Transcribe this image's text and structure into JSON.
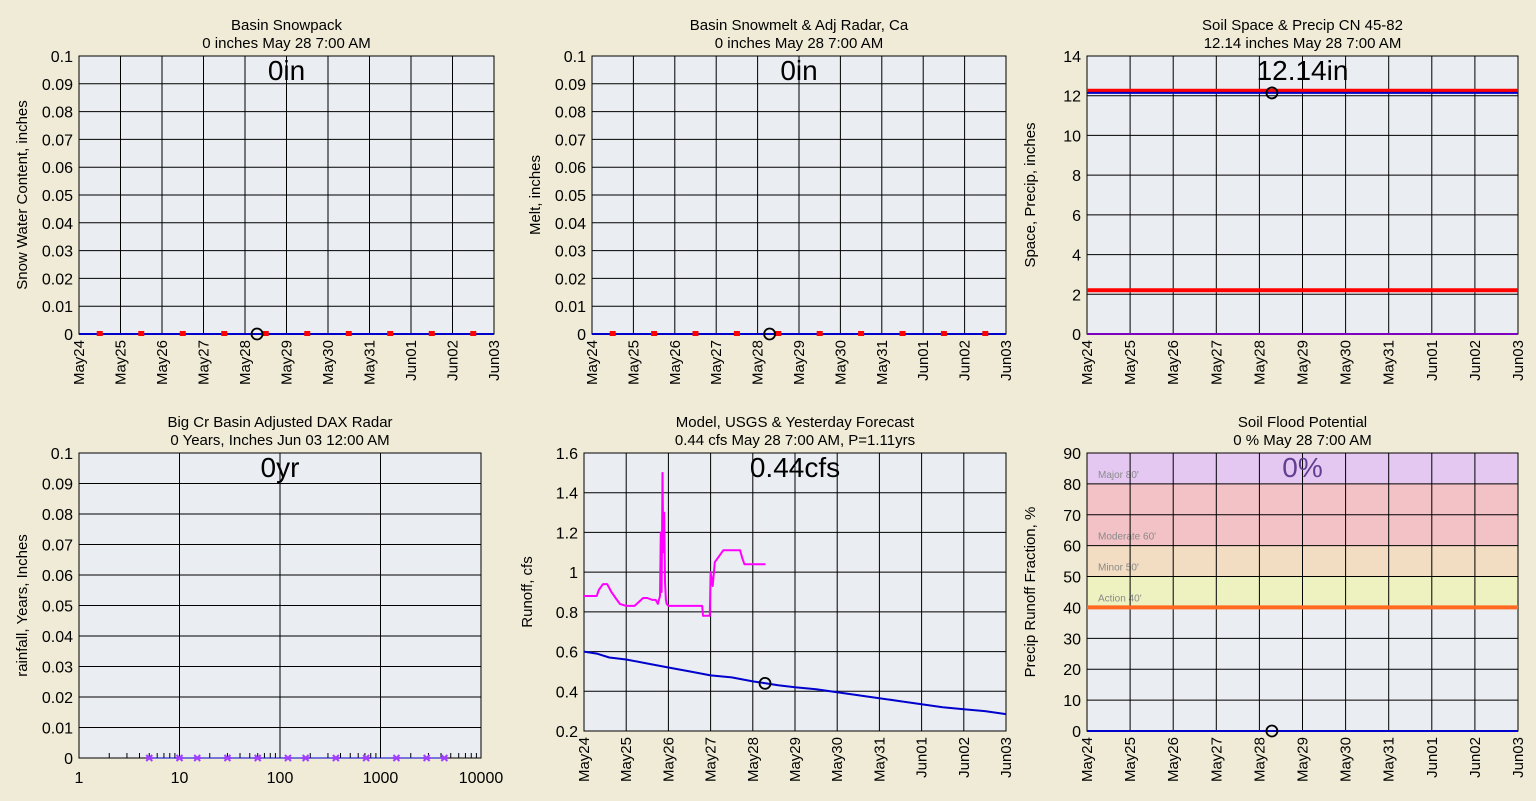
{
  "colors": {
    "background": "#efebd6",
    "plot_bg": "#eaedf2",
    "grid": "#000000",
    "series_blue": "#0000cc",
    "series_red": "#ff0000",
    "series_magenta": "#ff00ff",
    "series_purple": "#a040ff",
    "marker": "#000000"
  },
  "chart_data": [
    {
      "id": "snowpack",
      "type": "line",
      "title": "Basin Snowpack",
      "subtitle": "0 inches May 28 7:00 AM",
      "big_value": "0in",
      "ylabel": "Snow Water Content, inches",
      "ylim": [
        0,
        0.1
      ],
      "yticks": [
        0,
        0.01,
        0.02,
        0.03,
        0.04,
        0.05,
        0.06,
        0.07,
        0.08,
        0.09,
        0.1
      ],
      "ytick_labels": [
        "0",
        "0.01",
        "0.02",
        "0.03",
        "0.04",
        "0.05",
        "0.06",
        "0.07",
        "0.08",
        "0.09",
        "0.1"
      ],
      "xaxis": "date",
      "xlim": [
        0,
        10
      ],
      "xtick_labels": [
        "May24",
        "May25",
        "May26",
        "May27",
        "May28",
        "May29",
        "May30",
        "May31",
        "Jun01",
        "Jun02",
        "Jun03"
      ],
      "series": [
        {
          "kind": "line",
          "color": "#0000cc",
          "width": 2,
          "x": [
            0,
            10
          ],
          "y": [
            0,
            0
          ]
        },
        {
          "kind": "squares",
          "color": "#ff0000",
          "x": [
            0.5,
            1.5,
            2.5,
            3.5,
            4.5,
            5.5,
            6.5,
            7.5,
            8.5,
            9.5
          ],
          "y": [
            0,
            0,
            0,
            0,
            0,
            0,
            0,
            0,
            0,
            0
          ]
        }
      ],
      "marker": {
        "x": 4.29,
        "y": 0
      }
    },
    {
      "id": "snowmelt",
      "type": "line",
      "title": "Basin Snowmelt & Adj Radar, Ca",
      "subtitle": "0 inches May 28 7:00 AM",
      "big_value": "0in",
      "ylabel": "Melt, inches",
      "ylim": [
        0,
        0.1
      ],
      "yticks": [
        0,
        0.01,
        0.02,
        0.03,
        0.04,
        0.05,
        0.06,
        0.07,
        0.08,
        0.09,
        0.1
      ],
      "ytick_labels": [
        "0",
        "0.01",
        "0.02",
        "0.03",
        "0.04",
        "0.05",
        "0.06",
        "0.07",
        "0.08",
        "0.09",
        "0.1"
      ],
      "xaxis": "date",
      "xlim": [
        0,
        10
      ],
      "xtick_labels": [
        "May24",
        "May25",
        "May26",
        "May27",
        "May28",
        "May29",
        "May30",
        "May31",
        "Jun01",
        "Jun02",
        "Jun03"
      ],
      "series": [
        {
          "kind": "line",
          "color": "#0000cc",
          "width": 2,
          "x": [
            0,
            10
          ],
          "y": [
            0,
            0
          ]
        },
        {
          "kind": "squares",
          "color": "#ff0000",
          "x": [
            0.5,
            1.5,
            2.5,
            3.5,
            4.5,
            5.5,
            6.5,
            7.5,
            8.5,
            9.5
          ],
          "y": [
            0,
            0,
            0,
            0,
            0,
            0,
            0,
            0,
            0,
            0
          ]
        }
      ],
      "marker": {
        "x": 4.29,
        "y": 0
      }
    },
    {
      "id": "soilspace",
      "type": "line",
      "title": "Soil Space & Precip CN 45-82",
      "subtitle": "12.14 inches May 28 7:00 AM",
      "big_value": "12.14in",
      "ylabel": "Space, Precip, inches",
      "ylim": [
        0,
        14
      ],
      "yticks": [
        0,
        2,
        4,
        6,
        8,
        10,
        12,
        14
      ],
      "ytick_labels": [
        "0",
        "2",
        "4",
        "6",
        "8",
        "10",
        "12",
        "14"
      ],
      "xaxis": "date",
      "xlim": [
        0,
        10
      ],
      "xtick_labels": [
        "May24",
        "May25",
        "May26",
        "May27",
        "May28",
        "May29",
        "May30",
        "May31",
        "Jun01",
        "Jun02",
        "Jun03"
      ],
      "series": [
        {
          "kind": "line",
          "color": "#ff0000",
          "width": 4,
          "x": [
            0,
            10
          ],
          "y": [
            12.25,
            12.25
          ]
        },
        {
          "kind": "line",
          "color": "#0000cc",
          "width": 2,
          "x": [
            0,
            10
          ],
          "y": [
            12.14,
            12.14
          ]
        },
        {
          "kind": "line",
          "color": "#ff0000",
          "width": 4,
          "x": [
            0,
            10
          ],
          "y": [
            2.2,
            2.2
          ]
        },
        {
          "kind": "line",
          "color": "#8000c0",
          "width": 2,
          "x": [
            0,
            10
          ],
          "y": [
            0,
            0
          ]
        }
      ],
      "marker": {
        "x": 4.29,
        "y": 12.14
      }
    },
    {
      "id": "radar",
      "type": "line",
      "title": "Big Cr Basin Adjusted DAX Radar",
      "subtitle": "0 Years, Inches Jun 03 12:00 AM",
      "big_value": "0yr",
      "ylabel": "rainfall, Years, Inches",
      "ylim": [
        0,
        0.1
      ],
      "yticks": [
        0,
        0.01,
        0.02,
        0.03,
        0.04,
        0.05,
        0.06,
        0.07,
        0.08,
        0.09,
        0.1
      ],
      "ytick_labels": [
        "0",
        "0.01",
        "0.02",
        "0.03",
        "0.04",
        "0.05",
        "0.06",
        "0.07",
        "0.08",
        "0.09",
        "0.1"
      ],
      "xaxis": "log",
      "xlim": [
        1,
        10000
      ],
      "xtick_values": [
        1,
        10,
        100,
        1000,
        10000
      ],
      "xtick_labels": [
        "1",
        "10",
        "100",
        "1000",
        "10000"
      ],
      "series": [
        {
          "kind": "line",
          "color": "#0000cc",
          "width": 1,
          "x": [
            5,
            4320
          ],
          "y": [
            0,
            0
          ]
        },
        {
          "kind": "stars",
          "color": "#a040ff",
          "x": [
            5,
            10,
            15,
            30,
            60,
            120,
            180,
            360,
            720,
            1440,
            2880,
            4320
          ],
          "y": [
            0,
            0,
            0,
            0,
            0,
            0,
            0,
            0,
            0,
            0,
            0,
            0
          ]
        }
      ]
    },
    {
      "id": "runoff",
      "type": "line",
      "title": "Model, USGS & Yesterday Forecast",
      "subtitle": "0.44 cfs May 28 7:00 AM, P=1.11yrs",
      "big_value": "0.44cfs",
      "ylabel": "Runoff, cfs",
      "ylim": [
        0.2,
        1.6
      ],
      "yticks": [
        0.2,
        0.4,
        0.6,
        0.8,
        1,
        1.2,
        1.4,
        1.6
      ],
      "ytick_labels": [
        "0.2",
        "0.4",
        "0.6",
        "0.8",
        "1",
        "1.2",
        "1.4",
        "1.6"
      ],
      "xaxis": "date",
      "xlim": [
        0,
        10
      ],
      "xtick_labels": [
        "May24",
        "May25",
        "May26",
        "May27",
        "May28",
        "May29",
        "May30",
        "May31",
        "Jun01",
        "Jun02",
        "Jun03"
      ],
      "series": [
        {
          "kind": "line",
          "color": "#0000cc",
          "width": 2,
          "x": [
            0,
            0.3,
            0.6,
            1,
            1.5,
            2,
            2.5,
            3,
            3.5,
            4,
            4.3,
            4.6,
            5,
            5.5,
            6,
            6.5,
            7,
            7.5,
            8,
            8.5,
            9,
            9.5,
            10
          ],
          "y": [
            0.6,
            0.59,
            0.57,
            0.56,
            0.54,
            0.52,
            0.5,
            0.48,
            0.47,
            0.45,
            0.44,
            0.43,
            0.42,
            0.41,
            0.395,
            0.38,
            0.365,
            0.35,
            0.335,
            0.32,
            0.31,
            0.3,
            0.285
          ]
        },
        {
          "kind": "line",
          "color": "#ff00ff",
          "width": 2,
          "x": [
            0,
            0.3,
            0.35,
            0.45,
            0.55,
            0.65,
            0.75,
            0.85,
            1.0,
            1.2,
            1.4,
            1.5,
            1.62,
            1.7,
            1.75,
            1.8,
            1.82,
            1.84,
            1.86,
            1.88,
            1.9,
            1.92,
            1.94,
            1.96,
            2.0,
            2.1,
            2.3,
            2.5,
            2.6,
            2.8,
            2.82,
            2.9,
            2.95,
            2.98,
            3.0,
            3.05,
            3.1,
            3.2,
            3.3,
            3.5,
            3.6,
            3.7,
            3.75,
            3.8,
            3.9,
            4.0,
            4.2,
            4.3
          ],
          "y": [
            0.88,
            0.88,
            0.91,
            0.94,
            0.94,
            0.9,
            0.87,
            0.84,
            0.83,
            0.83,
            0.87,
            0.87,
            0.86,
            0.86,
            0.84,
            0.88,
            1.2,
            0.9,
            1.5,
            1.1,
            1.3,
            0.95,
            0.86,
            0.84,
            0.83,
            0.83,
            0.83,
            0.83,
            0.83,
            0.83,
            0.78,
            0.78,
            0.78,
            0.78,
            1.0,
            0.93,
            1.05,
            1.08,
            1.11,
            1.11,
            1.11,
            1.11,
            1.07,
            1.04,
            1.04,
            1.04,
            1.04,
            1.04
          ]
        }
      ],
      "marker": {
        "x": 4.29,
        "y": 0.44
      }
    },
    {
      "id": "flood",
      "type": "line",
      "title": "Soil Flood Potential",
      "subtitle": "0 % May 28 7:00 AM",
      "big_value": "0%",
      "big_value_color": "#604090",
      "ylabel": "Precip Runoff Fraction, %",
      "ylim": [
        0,
        90
      ],
      "yticks": [
        0,
        10,
        20,
        30,
        40,
        50,
        60,
        70,
        80,
        90
      ],
      "ytick_labels": [
        "0",
        "10",
        "20",
        "30",
        "40",
        "50",
        "60",
        "70",
        "80",
        "90"
      ],
      "xaxis": "date",
      "xlim": [
        0,
        10
      ],
      "xtick_labels": [
        "May24",
        "May25",
        "May26",
        "May27",
        "May28",
        "May29",
        "May30",
        "May31",
        "Jun01",
        "Jun02",
        "Jun03"
      ],
      "bands": [
        {
          "from": 80,
          "to": 90,
          "color": "#e5c8f2",
          "label": "Major 80'"
        },
        {
          "from": 60,
          "to": 80,
          "color": "#f2c2c6",
          "label": "Moderate 60'"
        },
        {
          "from": 50,
          "to": 60,
          "color": "#f2dcc2",
          "label": "Minor 50'"
        },
        {
          "from": 40,
          "to": 50,
          "color": "#eef2c0",
          "label": "Action 40'"
        }
      ],
      "series": [
        {
          "kind": "line",
          "color": "#ff6a20",
          "width": 4,
          "x": [
            0,
            10
          ],
          "y": [
            40,
            40
          ]
        },
        {
          "kind": "line",
          "color": "#0000cc",
          "width": 2,
          "x": [
            0,
            10
          ],
          "y": [
            0,
            0
          ]
        }
      ],
      "marker": {
        "x": 4.29,
        "y": 0
      }
    }
  ]
}
